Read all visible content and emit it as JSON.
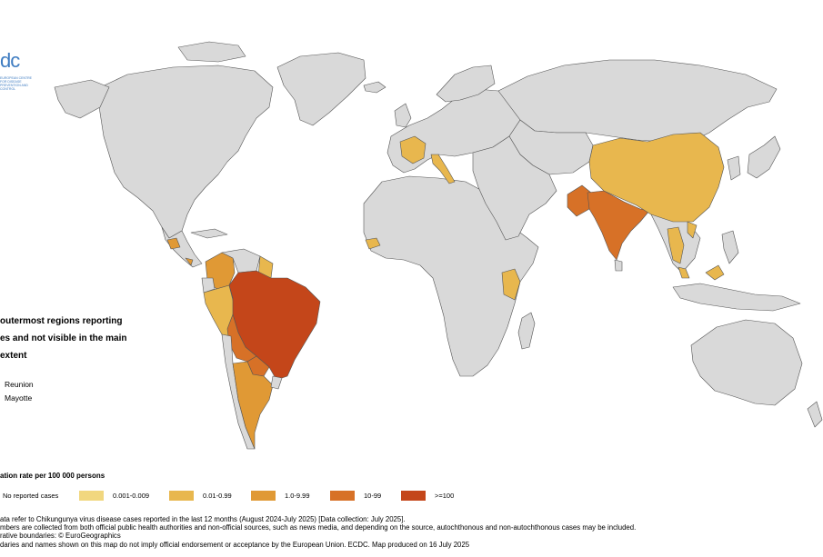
{
  "outermost": {
    "title_lines": [
      "outermost regions reporting",
      "es and not visible in the main",
      "extent"
    ],
    "regions": [
      "Reunion",
      "Mayotte"
    ]
  },
  "legend": {
    "title": "ation rate per 100 000 persons",
    "items": [
      {
        "label": "No reported cases",
        "color": "#d9d9d9"
      },
      {
        "label": "0.001-0.009",
        "color": "#f1d77f"
      },
      {
        "label": "0.01-0.99",
        "color": "#e8b74e"
      },
      {
        "label": "1.0-9.99",
        "color": "#e09935"
      },
      {
        "label": "10-99",
        "color": "#d77127"
      },
      {
        "label": ">=100",
        "color": "#c4461a"
      }
    ]
  },
  "footnotes": [
    "ata refer to Chikungunya virus disease cases reported in the last 12 months (August 2024-July 2025) [Data collection: July 2025].",
    "mbers are collected from both official public health authorities and non-official sources, such as news media, and depending on the source, autochthonous and non-autochthonous cases may be included.",
    "rative boundaries: © EuroGeographics",
    "daries and names shown on this map do not imply official endorsement or acceptance by the European Union. ECDC. Map produced on 16 July 2025"
  ],
  "logo": {
    "text": "dc",
    "sub": "EUROPEAN CENTRE FOR DISEASE PREVENTION AND CONTROL"
  },
  "map_regions": [
    {
      "name": "Brazil",
      "category": ">=100"
    },
    {
      "name": "Paraguay",
      "category": "10-99"
    },
    {
      "name": "Bolivia",
      "category": "10-99"
    },
    {
      "name": "India",
      "category": "10-99"
    },
    {
      "name": "Pakistan",
      "category": "10-99"
    },
    {
      "name": "Argentina",
      "category": "1.0-9.99"
    },
    {
      "name": "Colombia",
      "category": "1.0-9.99"
    },
    {
      "name": "Peru",
      "category": "0.01-0.99"
    },
    {
      "name": "China",
      "category": "0.01-0.99"
    },
    {
      "name": "France",
      "category": "0.01-0.99"
    },
    {
      "name": "Italy",
      "category": "0.01-0.99"
    },
    {
      "name": "Kenya",
      "category": "0.01-0.99"
    },
    {
      "name": "Thailand",
      "category": "0.01-0.99"
    },
    {
      "name": "Senegal",
      "category": "0.01-0.99"
    },
    {
      "name": "Guatemala",
      "category": "1.0-9.99"
    }
  ]
}
